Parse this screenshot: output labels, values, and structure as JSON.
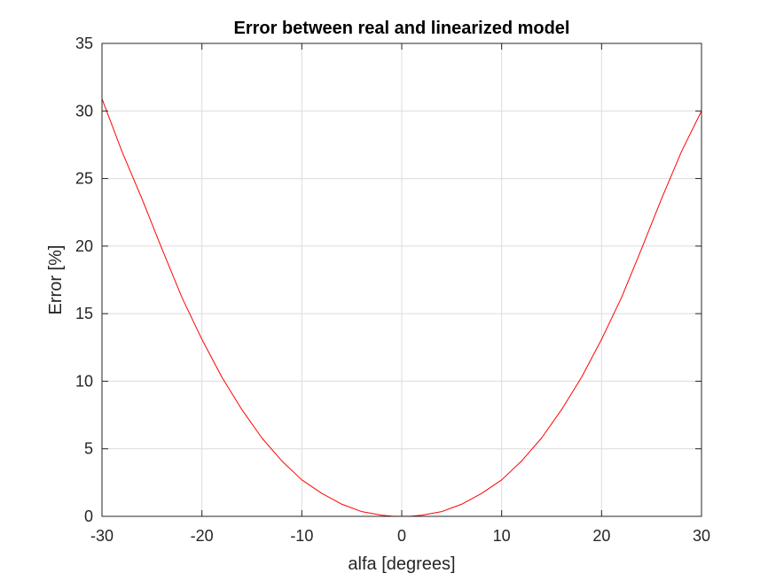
{
  "chart_data": {
    "type": "line",
    "title": "Error between real and linearized model",
    "xlabel": "alfa [degrees]",
    "ylabel": "Error [%]",
    "xlim": [
      -30,
      30
    ],
    "ylim": [
      0,
      35
    ],
    "xticks": [
      "-30",
      "-20",
      "-10",
      "0",
      "10",
      "20",
      "30"
    ],
    "yticks": [
      "0",
      "5",
      "10",
      "15",
      "20",
      "25",
      "30",
      "35"
    ],
    "grid": true,
    "legend": "none",
    "series": [
      {
        "color": "#ff0000",
        "x": [
          -30,
          -28,
          -26,
          -24,
          -22,
          -20,
          -18,
          -16,
          -14,
          -12,
          -10,
          -8,
          -6,
          -4,
          -2,
          -1,
          0,
          1,
          2,
          4,
          6,
          8,
          10,
          12,
          14,
          16,
          18,
          20,
          22,
          24,
          26,
          28,
          30
        ],
        "y": [
          30.9,
          27.0,
          23.5,
          19.8,
          16.2,
          13.1,
          10.3,
          7.9,
          5.8,
          4.1,
          2.7,
          1.7,
          0.9,
          0.35,
          0.08,
          0.02,
          0.0,
          0.02,
          0.08,
          0.35,
          0.9,
          1.7,
          2.7,
          4.1,
          5.8,
          7.9,
          10.3,
          13.1,
          16.2,
          19.8,
          23.5,
          27.0,
          30.0
        ]
      }
    ]
  },
  "colors": {
    "axes": "#262626",
    "grid": "#dcdcdc",
    "background": "#ffffff",
    "line": "#ff0000"
  }
}
